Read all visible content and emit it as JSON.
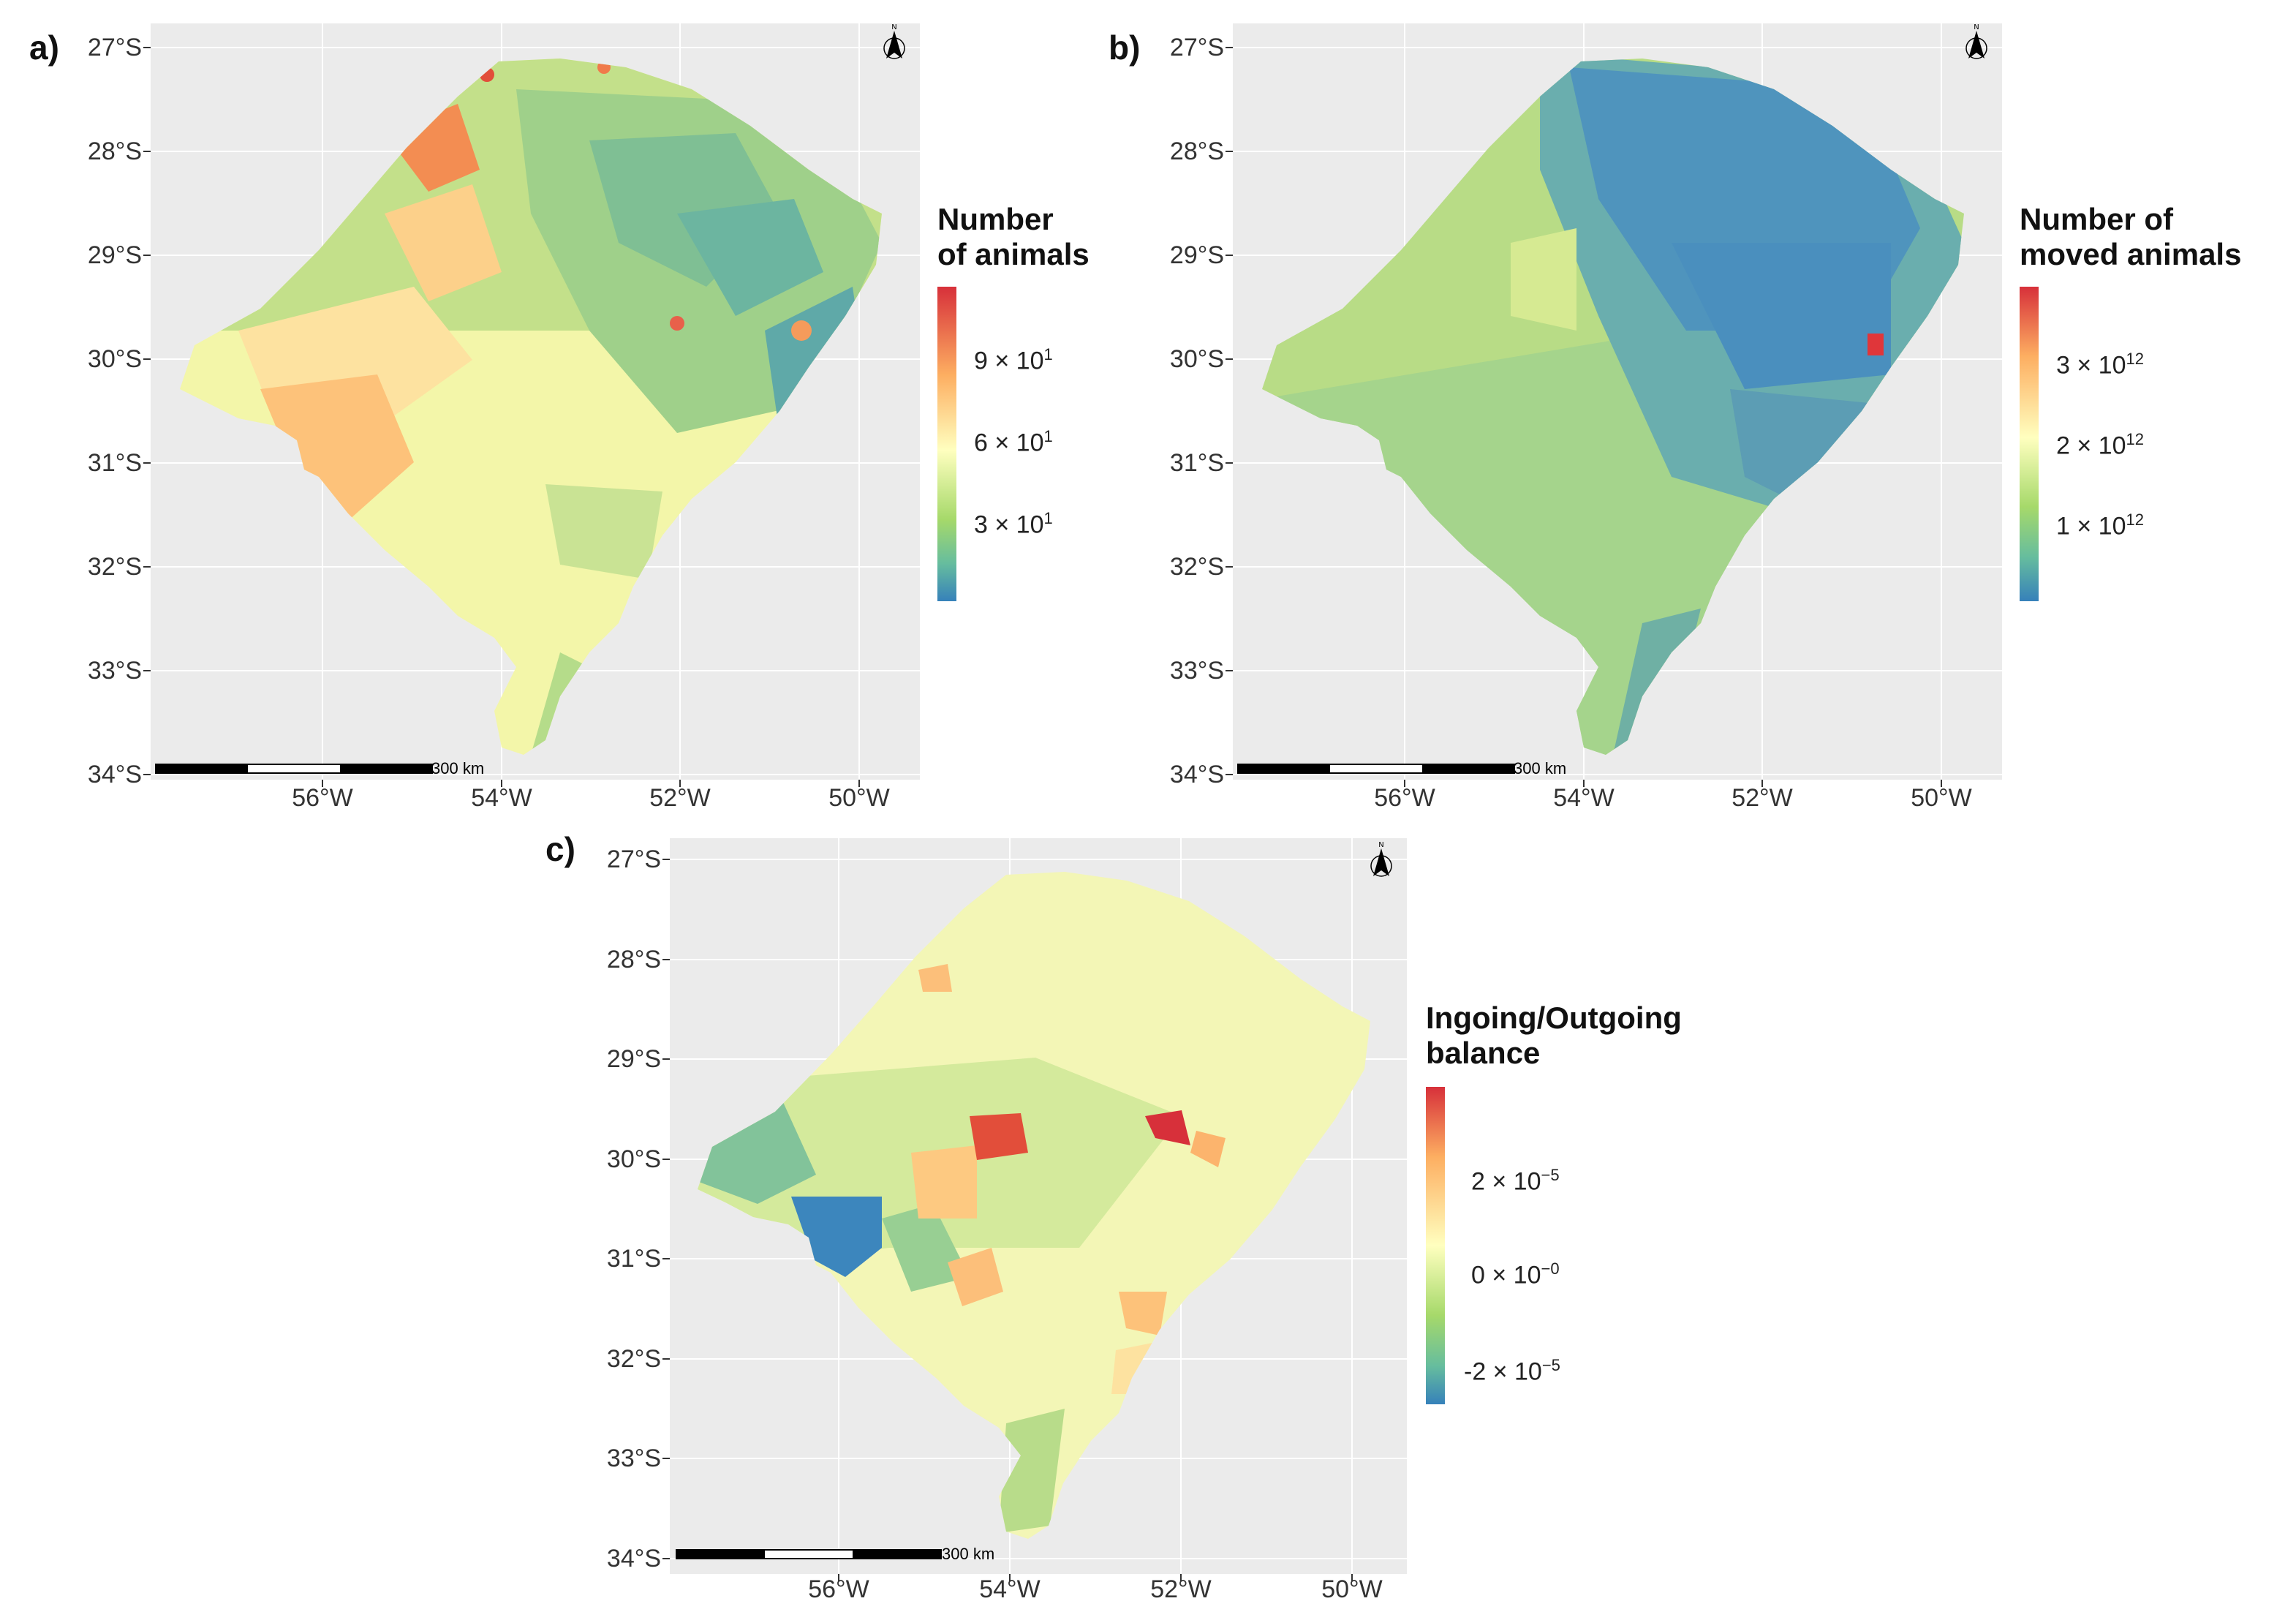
{
  "panels": [
    {
      "label": "a)",
      "legend_title_1": "Number",
      "legend_title_2": "of animals",
      "legend_labels": [
        {
          "base": "9 × 10",
          "exp": "1"
        },
        {
          "base": "6 × 10",
          "exp": "1"
        },
        {
          "base": "3 × 10",
          "exp": "1"
        }
      ]
    },
    {
      "label": "b)",
      "legend_title_1": "Number of",
      "legend_title_2": "moved animals",
      "legend_labels": [
        {
          "base": "3 × 10",
          "exp": "12"
        },
        {
          "base": "2 × 10",
          "exp": "12"
        },
        {
          "base": "1 × 10",
          "exp": "12"
        }
      ]
    },
    {
      "label": "c)",
      "legend_title_1": "Ingoing/Outgoing",
      "legend_title_2": "balance",
      "legend_labels": [
        {
          "base": "2 × 10",
          "exp": "−5"
        },
        {
          "base": "0 × 10",
          "exp": "−0"
        },
        {
          "base": "-2 × 10",
          "exp": "−5"
        }
      ]
    }
  ],
  "axes": {
    "lat_labels": [
      "27°S",
      "28°S",
      "29°S",
      "30°S",
      "31°S",
      "32°S",
      "33°S",
      "34°S"
    ],
    "lon_labels": [
      "56°W",
      "54°W",
      "52°W",
      "50°W"
    ]
  },
  "scale_bar_label": "300 km",
  "north_arrow_letter": "N",
  "colors": {
    "panel_bg": "#ebebeb",
    "scale_red": "#d7303a",
    "scale_orange": "#fdae61",
    "scale_yellow": "#ffffbf",
    "scale_green": "#a6d96a",
    "scale_teal": "#66bd9e",
    "scale_blue": "#3681ba"
  }
}
